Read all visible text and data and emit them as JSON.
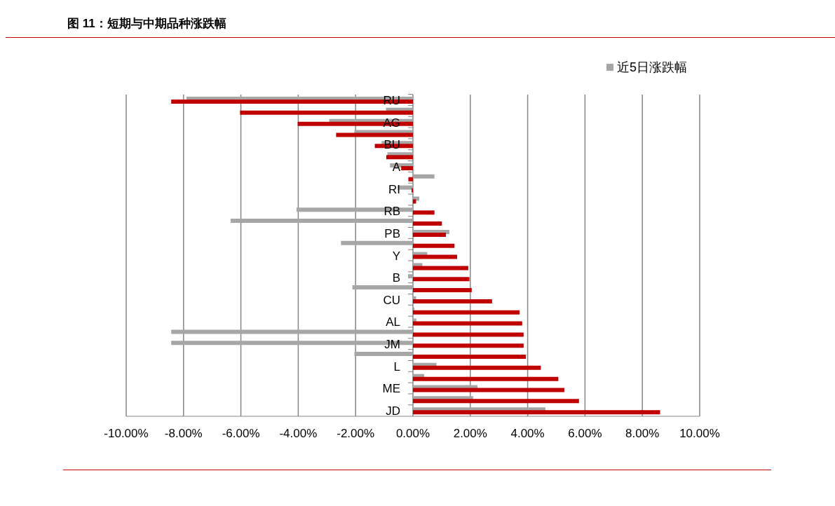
{
  "chart_data": {
    "type": "bar",
    "orientation": "horizontal",
    "title": "图 11：短期与中期品种涨跌幅",
    "categories": [
      "RU",
      null,
      "AG",
      null,
      "BU",
      null,
      "A",
      null,
      "RI",
      null,
      "RB",
      null,
      "PB",
      null,
      "Y",
      null,
      "B",
      null,
      "CU",
      null,
      "AL",
      null,
      "JM",
      null,
      "L",
      null,
      "ME",
      null,
      "JD"
    ],
    "series": [
      {
        "name": "近5日涨跌幅",
        "color": "#a6a6a6",
        "values": [
          -7.9,
          -0.94,
          -2.92,
          -2.04,
          -1.09,
          -0.89,
          -0.8,
          0.75,
          -0.53,
          0.22,
          -4.06,
          -6.36,
          1.27,
          -2.51,
          0.5,
          0.33,
          -0.17,
          -2.11,
          0.11,
          0.05,
          0.12,
          -8.43,
          -8.43,
          -2.04,
          0.82,
          0.39,
          2.25,
          2.1,
          4.62
        ]
      },
      {
        "color": "#c00000",
        "values": [
          -8.43,
          -6.03,
          -4.02,
          -2.68,
          -1.33,
          -0.93,
          -0.41,
          -0.16,
          -0.05,
          0.11,
          0.75,
          1.01,
          1.15,
          1.45,
          1.54,
          1.93,
          1.97,
          2.05,
          2.76,
          3.72,
          3.81,
          3.86,
          3.86,
          3.94,
          4.46,
          5.07,
          5.28,
          5.79,
          8.62
        ]
      }
    ],
    "xlim": [
      -10,
      10
    ],
    "xticks": [
      {
        "value": -10,
        "label": "-10.00%"
      },
      {
        "value": -8,
        "label": "-8.00%"
      },
      {
        "value": -6,
        "label": "-6.00%"
      },
      {
        "value": -4,
        "label": "-4.00%"
      },
      {
        "value": -2,
        "label": "-2.00%"
      },
      {
        "value": 0,
        "label": "0.00%"
      },
      {
        "value": 2,
        "label": "2.00%"
      },
      {
        "value": 4,
        "label": "4.00%"
      },
      {
        "value": 6,
        "label": "6.00%"
      },
      {
        "value": 8,
        "label": "8.00%"
      },
      {
        "value": 10,
        "label": "10.00%"
      }
    ],
    "grid": "x",
    "legend": "top right"
  }
}
